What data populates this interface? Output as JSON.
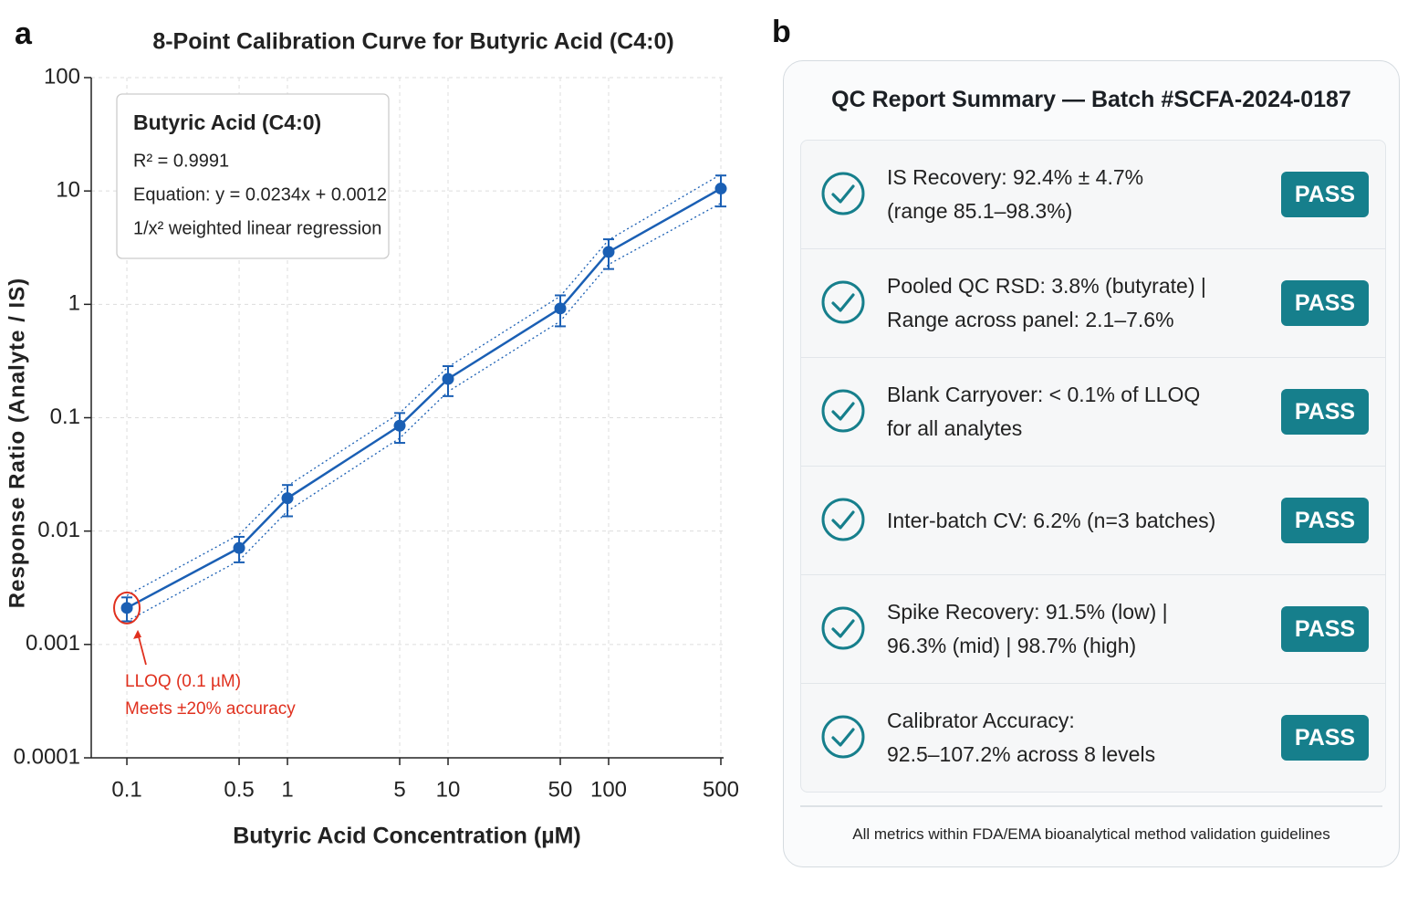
{
  "panel_labels": [
    "a",
    "b"
  ],
  "chart_data": {
    "type": "line",
    "title": "8-Point Calibration Curve for Butyric Acid (C4:0)",
    "x_label": "Butyric Acid Concentration (µM)",
    "y_label": "Response Ratio (Analyte / IS)",
    "x": [
      0.1,
      0.5,
      1,
      5,
      10,
      50,
      100,
      500
    ],
    "values": [
      0.0021,
      0.0071,
      0.0195,
      0.085,
      0.22,
      0.92,
      2.9,
      10.5
    ],
    "errors": [
      0.0005,
      0.0018,
      0.006,
      0.025,
      0.065,
      0.28,
      0.85,
      3.2
    ],
    "ci_upper": [
      0.0027,
      0.0093,
      0.025,
      0.11,
      0.28,
      1.18,
      3.7,
      14
    ],
    "ci_lower": [
      0.0016,
      0.0055,
      0.015,
      0.066,
      0.17,
      0.71,
      2.25,
      7.8
    ],
    "color": "#1a5fb4",
    "xscale": "log",
    "yscale": "log",
    "xlim": [
      0.06,
      520
    ],
    "ylim": [
      0.0001,
      100
    ],
    "xticks": [
      0.1,
      0.5,
      1,
      5,
      10,
      50,
      100,
      500
    ],
    "yticks": [
      0.0001,
      0.001,
      0.01,
      0.1,
      1,
      10,
      100
    ],
    "grid": true,
    "annotation": {
      "title": "Butyric Acid (C4:0)",
      "lines": [
        "R² = 0.9991",
        "Equation: y = 0.0234x + 0.0012",
        "1/x² weighted linear regression"
      ]
    },
    "callout": {
      "lines": [
        "LLOQ (0.1 µM)",
        "Meets ±20% accuracy"
      ],
      "color": "#e0301e"
    }
  },
  "qc_report": {
    "title": "QC Report Summary — Batch #SCFA-2024-0187",
    "items": [
      {
        "lines": [
          "IS Recovery: 92.4% ± 4.7%",
          "(range 85.1–98.3%)"
        ],
        "status": "PASS"
      },
      {
        "lines": [
          "Pooled QC RSD: 3.8% (butyrate) |",
          "Range across panel: 2.1–7.6%"
        ],
        "status": "PASS"
      },
      {
        "lines": [
          "Blank Carryover: < 0.1% of LLOQ",
          "for all analytes"
        ],
        "status": "PASS"
      },
      {
        "lines": [
          "Inter-batch CV: 6.2% (n=3 batches)"
        ],
        "status": "PASS"
      },
      {
        "lines": [
          "Spike Recovery: 91.5% (low) |",
          "96.3% (mid) | 98.7% (high)"
        ],
        "status": "PASS"
      },
      {
        "lines": [
          "Calibrator Accuracy:",
          "92.5–107.2% across 8 levels"
        ],
        "status": "PASS"
      }
    ],
    "footer": "All metrics within FDA/EMA bioanalytical method validation guidelines"
  }
}
